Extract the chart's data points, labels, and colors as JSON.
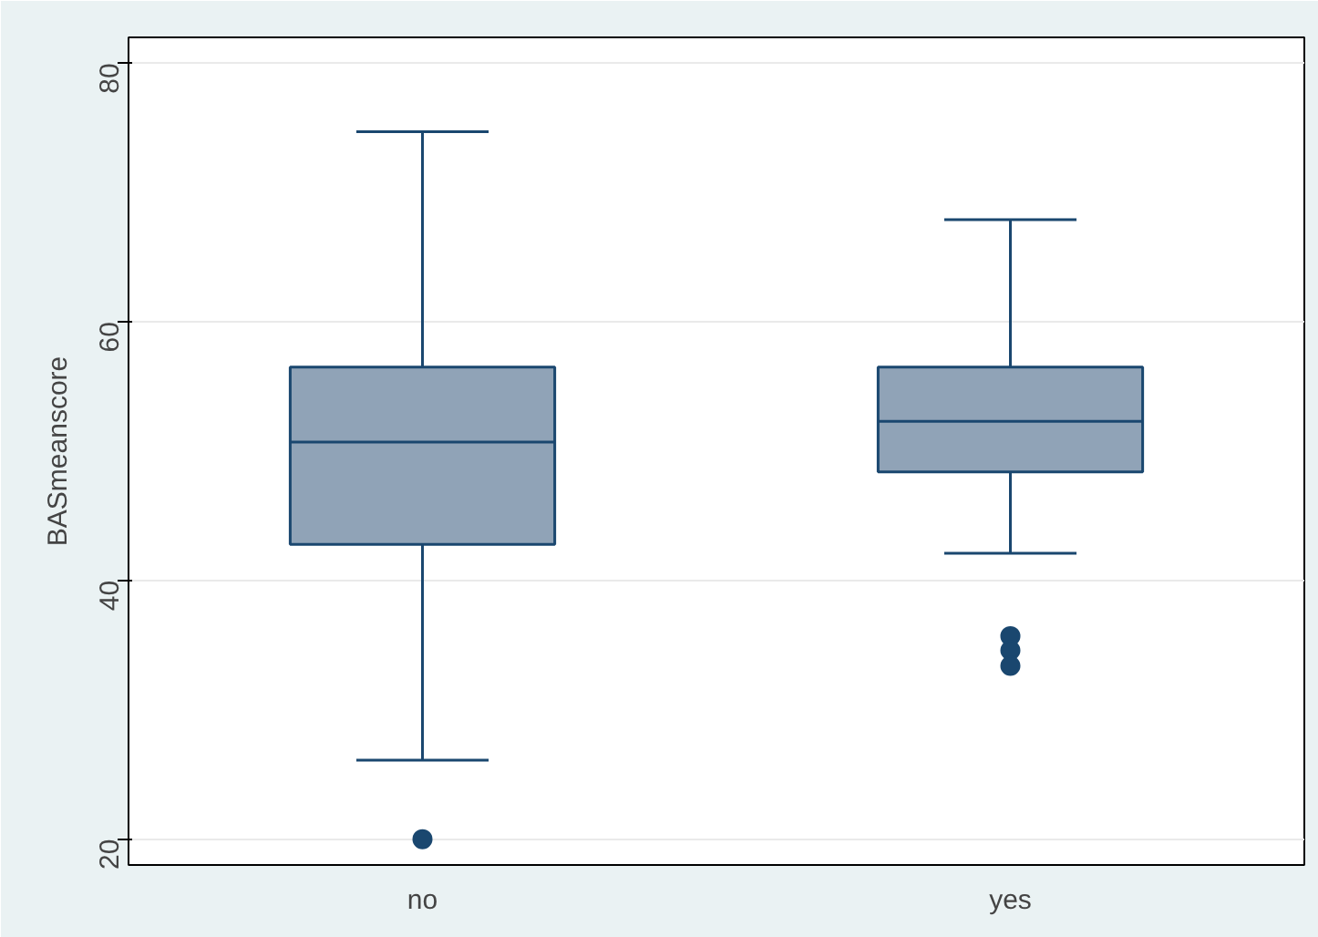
{
  "chart_data": {
    "type": "box",
    "ylabel": "BASmeanscore",
    "categories": [
      "no",
      "yes"
    ],
    "boxes": [
      {
        "low": 26.1,
        "q1": 42.8,
        "median": 50.7,
        "q3": 56.5,
        "high": 74.7,
        "outliers": [
          20
        ]
      },
      {
        "low": 42.1,
        "q1": 48.4,
        "median": 52.3,
        "q3": 56.5,
        "high": 67.9,
        "outliers": [
          35.7,
          34.6,
          33.4
        ]
      }
    ],
    "color": "#90a3b7",
    "ylim": [
      18,
      82
    ],
    "yticks": [
      20,
      40,
      60,
      80
    ],
    "grid": "y"
  }
}
